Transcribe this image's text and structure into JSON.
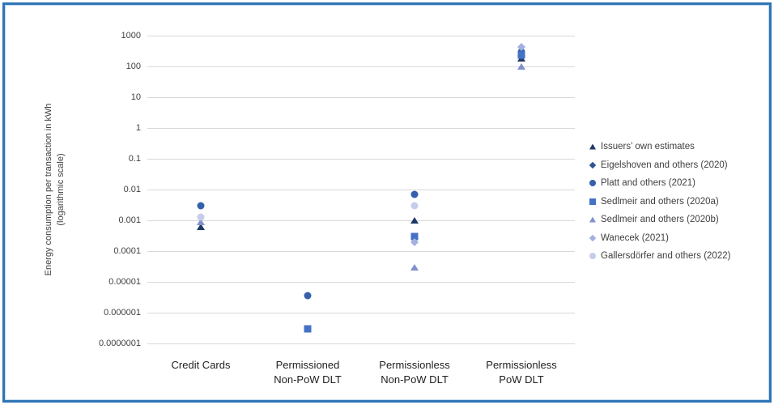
{
  "frame": {
    "border_color": "#2e75b6"
  },
  "y_axis": {
    "title_line1": "Energy consumption per transaction in kWh",
    "title_line2": "(logarithmic scale)"
  },
  "chart_data": {
    "type": "scatter",
    "title": "",
    "xlabel": "",
    "ylabel": "Energy consumption per transaction in kWh (logarithmic scale)",
    "y_scale": "log",
    "ylim": [
      1e-07,
      1000
    ],
    "grid": "horizontal",
    "grid_color": "#d9d9d9",
    "legend_position": "right",
    "y_ticks": [
      "1000",
      "100",
      "10",
      "1",
      "0.1",
      "0.01",
      "0.001",
      "0.0001",
      "0.00001",
      "0.000001",
      "0.0000001"
    ],
    "categories": [
      "Credit Cards",
      "Permissioned\nNon-PoW DLT",
      "Permissionless\nNon-PoW DLT",
      "Permissionless\nPoW DLT"
    ],
    "series": [
      {
        "name": "Issuers’ own estimates",
        "shape": "triangle",
        "color": "#1f3864",
        "points": [
          {
            "category": "Credit Cards",
            "value": 0.0006
          },
          {
            "category": "Permissionless Non-PoW DLT",
            "value": 0.001
          },
          {
            "category": "Permissionless PoW DLT",
            "value": 180
          }
        ]
      },
      {
        "name": "Eigelshoven and others (2020)",
        "shape": "diamond",
        "color": "#2f5496",
        "points": [
          {
            "category": "Permissionless PoW DLT",
            "value": 220
          }
        ]
      },
      {
        "name": "Platt and others (2021)",
        "shape": "circle",
        "color": "#3560ab",
        "points": [
          {
            "category": "Credit Cards",
            "value": 0.003
          },
          {
            "category": "Permissioned Non-PoW DLT",
            "value": 3.5e-06
          },
          {
            "category": "Permissionless Non-PoW DLT",
            "value": 0.007
          },
          {
            "category": "Permissionless PoW DLT",
            "value": 290
          }
        ]
      },
      {
        "name": "Sedlmeir and others (2020a)",
        "shape": "square",
        "color": "#4472c4",
        "points": [
          {
            "category": "Permissioned Non-PoW DLT",
            "value": 3e-07
          },
          {
            "category": "Permissionless Non-PoW DLT",
            "value": 0.0003
          },
          {
            "category": "Permissionless PoW DLT",
            "value": 240
          }
        ]
      },
      {
        "name": "Sedlmeir and others (2020b)",
        "shape": "triangle",
        "color": "#8291cd",
        "points": [
          {
            "category": "Credit Cards",
            "value": 0.0009
          },
          {
            "category": "Permissionless Non-PoW DLT",
            "value": 3e-05
          },
          {
            "category": "Permissionless PoW DLT",
            "value": 100
          }
        ]
      },
      {
        "name": "Wanecek (2021)",
        "shape": "diamond",
        "color": "#a3b0e0",
        "points": [
          {
            "category": "Permissionless Non-PoW DLT",
            "value": 0.0002
          },
          {
            "category": "Permissionless PoW DLT",
            "value": 430
          }
        ]
      },
      {
        "name": "Gallersdörfer and others (2022)",
        "shape": "circle",
        "color": "#c5cde9",
        "points": [
          {
            "category": "Credit Cards",
            "value": 0.0013
          },
          {
            "category": "Permissionless Non-PoW DLT",
            "value": 0.003
          }
        ]
      }
    ]
  }
}
